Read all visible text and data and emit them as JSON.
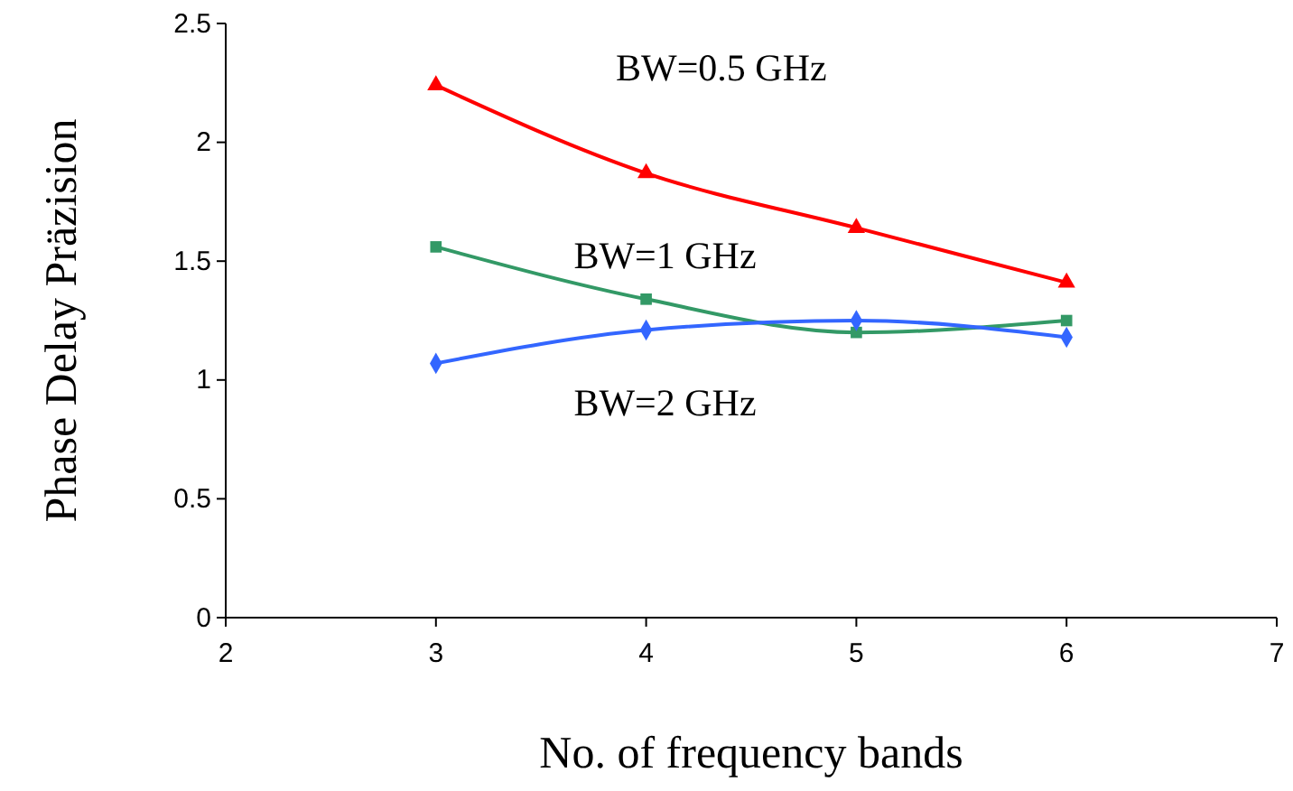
{
  "chart_data": {
    "type": "line",
    "xlabel": "No. of frequency bands",
    "ylabel": "Phase Delay Präzision",
    "x": [
      3,
      4,
      5,
      6
    ],
    "series": [
      {
        "name": "BW=0.5 GHz",
        "color": "#ff0000",
        "marker": "triangle",
        "values": [
          2.24,
          1.87,
          1.64,
          1.41
        ]
      },
      {
        "name": "BW=1 GHz",
        "color": "#339966",
        "marker": "square",
        "values": [
          1.56,
          1.34,
          1.2,
          1.25
        ]
      },
      {
        "name": "BW=2 GHz",
        "color": "#3366ff",
        "marker": "diamond",
        "values": [
          1.07,
          1.21,
          1.25,
          1.18
        ]
      }
    ],
    "xlim": [
      2,
      7
    ],
    "xticks": [
      2,
      3,
      4,
      5,
      6,
      7
    ],
    "ylim": [
      0,
      2.5
    ],
    "yticks": [
      0,
      0.5,
      1,
      1.5,
      2,
      2.5
    ],
    "grid": false,
    "legend": false
  }
}
